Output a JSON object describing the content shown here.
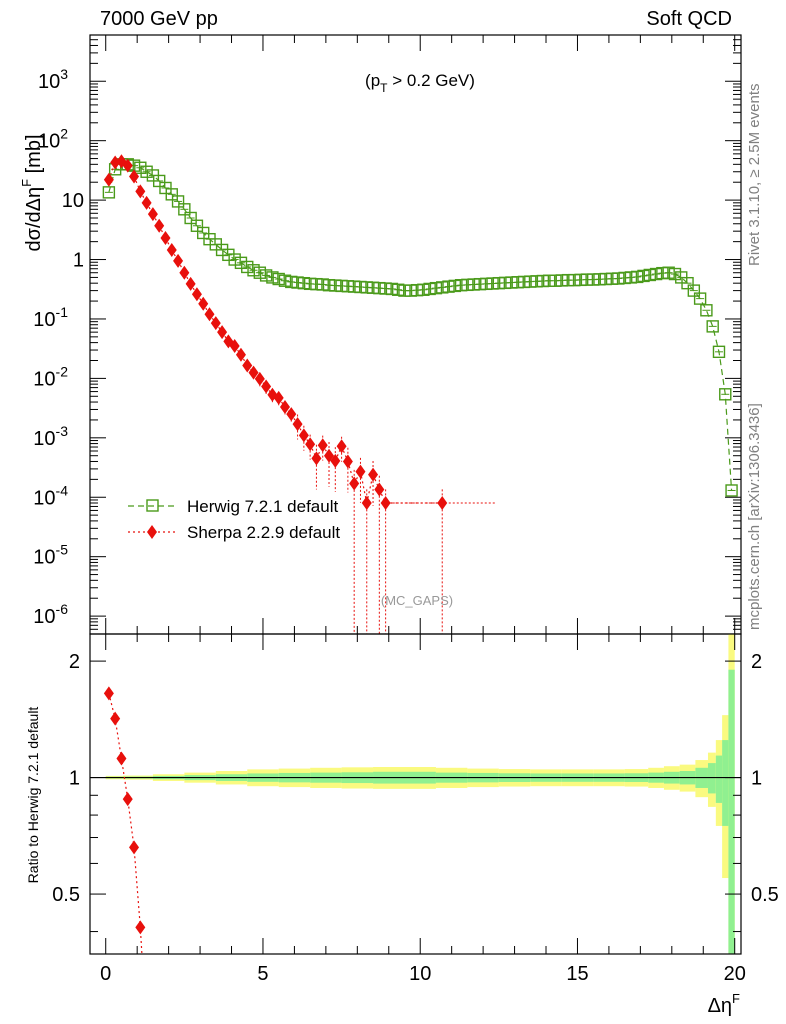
{
  "header": {
    "left_title": "7000 GeV pp",
    "right_title": "Soft QCD"
  },
  "side_labels": {
    "rivet": "Rivet 3.1.10, ≥ 2.5M events",
    "source": "mcplots.cern.ch [arXiv:1306.3436]"
  },
  "chart_data": [
    {
      "type": "scatter",
      "panel": "main",
      "title": "",
      "annotation_cut": "(p_T > 0.2 GeV)",
      "watermark": "(MC_GAPS)",
      "xlabel": "Δη^F",
      "ylabel": "dσ/dΔη^F [mb]",
      "xlim": [
        -0.5,
        20.2
      ],
      "ylim": [
        5e-07,
        6000
      ],
      "yscale": "log",
      "x_ticks": [
        0,
        5,
        10,
        15,
        20
      ],
      "y_ticks": [
        "10^-6",
        "10^-5",
        "10^-4",
        "10^-3",
        "10^-2",
        "10^-1",
        "1",
        "10",
        "10^2",
        "10^3"
      ],
      "legend_position": "lower-left",
      "series": [
        {
          "name": "Herwig 7.2.1 default",
          "color": "#4a9a1a",
          "marker": "open-square",
          "line": "dashed",
          "x": [
            0.1,
            0.3,
            0.5,
            0.7,
            0.9,
            1.1,
            1.3,
            1.5,
            1.7,
            1.9,
            2.1,
            2.3,
            2.5,
            2.7,
            2.9,
            3.1,
            3.3,
            3.5,
            3.7,
            3.9,
            4.1,
            4.3,
            4.5,
            4.7,
            4.9,
            5.1,
            5.3,
            5.5,
            5.7,
            5.9,
            6.1,
            6.3,
            6.5,
            6.7,
            6.9,
            7.1,
            7.3,
            7.5,
            7.7,
            7.9,
            8.1,
            8.3,
            8.5,
            8.7,
            8.9,
            9.1,
            9.3,
            9.5,
            9.7,
            9.9,
            10.1,
            10.3,
            10.5,
            10.7,
            10.9,
            11.1,
            11.3,
            11.5,
            11.7,
            11.9,
            12.1,
            12.3,
            12.5,
            12.7,
            12.9,
            13.1,
            13.3,
            13.5,
            13.7,
            13.9,
            14.1,
            14.3,
            14.5,
            14.7,
            14.9,
            15.1,
            15.3,
            15.5,
            15.7,
            15.9,
            16.1,
            16.3,
            16.5,
            16.7,
            16.9,
            17.1,
            17.3,
            17.5,
            17.7,
            17.9,
            18.1,
            18.3,
            18.5,
            18.7,
            18.9,
            19.1,
            19.3,
            19.5,
            19.7,
            19.9
          ],
          "y": [
            13.5,
            33,
            40,
            40,
            38,
            35,
            30,
            26,
            21,
            16,
            12.5,
            9.5,
            7,
            5,
            3.7,
            2.8,
            2.2,
            1.8,
            1.45,
            1.2,
            1.0,
            0.88,
            0.75,
            0.66,
            0.6,
            0.54,
            0.5,
            0.47,
            0.44,
            0.42,
            0.41,
            0.4,
            0.39,
            0.385,
            0.38,
            0.37,
            0.365,
            0.36,
            0.355,
            0.35,
            0.345,
            0.34,
            0.335,
            0.33,
            0.325,
            0.32,
            0.31,
            0.3,
            0.3,
            0.305,
            0.31,
            0.32,
            0.33,
            0.34,
            0.35,
            0.36,
            0.37,
            0.375,
            0.38,
            0.385,
            0.39,
            0.395,
            0.4,
            0.405,
            0.41,
            0.415,
            0.42,
            0.425,
            0.43,
            0.435,
            0.44,
            0.44,
            0.445,
            0.45,
            0.45,
            0.455,
            0.46,
            0.46,
            0.465,
            0.47,
            0.475,
            0.48,
            0.49,
            0.5,
            0.51,
            0.53,
            0.55,
            0.57,
            0.59,
            0.6,
            0.57,
            0.5,
            0.4,
            0.3,
            0.22,
            0.14,
            0.075,
            0.028,
            0.0054,
            0.00013
          ]
        },
        {
          "name": "Sherpa 2.2.9 default",
          "color": "#e8100c",
          "marker": "filled-diamond",
          "line": "dotted",
          "x": [
            0.1,
            0.3,
            0.5,
            0.7,
            0.9,
            1.1,
            1.3,
            1.5,
            1.7,
            1.9,
            2.1,
            2.3,
            2.5,
            2.7,
            2.9,
            3.1,
            3.3,
            3.5,
            3.7,
            3.9,
            4.1,
            4.3,
            4.5,
            4.7,
            4.9,
            5.1,
            5.3,
            5.5,
            5.7,
            5.9,
            6.1,
            6.3,
            6.5,
            6.7,
            6.9,
            7.1,
            7.3,
            7.5,
            7.7,
            7.9,
            8.1,
            8.3,
            8.5,
            8.7,
            8.9,
            10.7
          ],
          "y": [
            22,
            43,
            45,
            38,
            25,
            14,
            9,
            5.8,
            3.7,
            2.3,
            1.45,
            0.95,
            0.6,
            0.39,
            0.26,
            0.18,
            0.12,
            0.085,
            0.06,
            0.042,
            0.035,
            0.025,
            0.0165,
            0.0125,
            0.0098,
            0.0073,
            0.0053,
            0.0047,
            0.0033,
            0.0025,
            0.0017,
            0.0011,
            0.00078,
            0.00045,
            0.00075,
            0.0005,
            0.00041,
            0.00072,
            0.0004,
            0.00017,
            0.00027,
            8e-05,
            0.00024,
            0.000135,
            8e-05,
            8e-05
          ]
        }
      ]
    },
    {
      "type": "scatter",
      "panel": "ratio",
      "title": "",
      "xlabel": "Δη^F",
      "ylabel": "Ratio to Herwig 7.2.1 default",
      "xlim": [
        -0.5,
        20.2
      ],
      "ylim": [
        0.35,
        2.35
      ],
      "yscale": "log",
      "x_ticks": [
        0,
        5,
        10,
        15,
        20
      ],
      "y_ticks": [
        0.5,
        1,
        2
      ],
      "reference_band": {
        "x": [
          0.1,
          1.0,
          2.0,
          3.0,
          4.0,
          5.0,
          6.0,
          7.0,
          8.0,
          9.0,
          10.0,
          11.0,
          12.0,
          13.0,
          14.0,
          15.0,
          16.0,
          17.0,
          17.5,
          18.0,
          18.5,
          19.0,
          19.3,
          19.5,
          19.7,
          19.9
        ],
        "inner_rel": [
          0.005,
          0.006,
          0.01,
          0.015,
          0.02,
          0.025,
          0.028,
          0.03,
          0.032,
          0.035,
          0.035,
          0.03,
          0.028,
          0.026,
          0.025,
          0.025,
          0.025,
          0.026,
          0.03,
          0.035,
          0.04,
          0.06,
          0.09,
          0.14,
          0.25,
          0.9
        ],
        "outer_rel": [
          0.01,
          0.012,
          0.02,
          0.03,
          0.04,
          0.05,
          0.055,
          0.06,
          0.063,
          0.065,
          0.065,
          0.06,
          0.055,
          0.052,
          0.05,
          0.05,
          0.05,
          0.052,
          0.06,
          0.07,
          0.08,
          0.11,
          0.16,
          0.25,
          0.45,
          1.4
        ],
        "inner_color": "#90f090",
        "outer_color": "#fafa80"
      },
      "series": [
        {
          "name": "Sherpa 2.2.9 default",
          "color": "#e8100c",
          "x": [
            0.1,
            0.3,
            0.5,
            0.7,
            0.9,
            1.1
          ],
          "y": [
            1.65,
            1.42,
            1.12,
            0.88,
            0.66,
            0.41
          ]
        }
      ]
    }
  ]
}
